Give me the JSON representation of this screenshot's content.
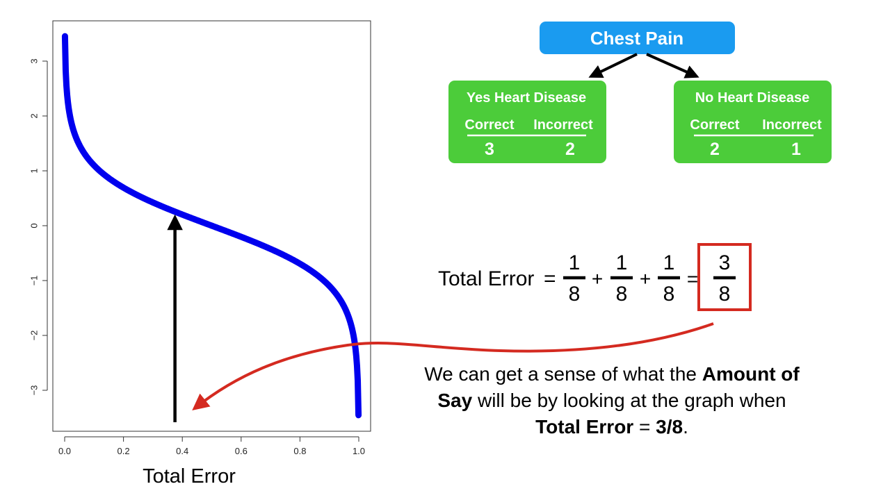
{
  "chart_data": {
    "type": "line",
    "xlabel": "Total Error",
    "ylabel": "",
    "xlim": [
      0.0,
      1.0
    ],
    "ylim": [
      -3.6,
      3.6
    ],
    "x_ticks": [
      "0.0",
      "0.2",
      "0.4",
      "0.6",
      "0.8",
      "1.0"
    ],
    "y_ticks": [
      "3",
      "2",
      "1",
      "0",
      "−1",
      "−2",
      "−3"
    ],
    "x_tick_values": [
      0,
      0.2,
      0.4,
      0.6,
      0.8,
      1.0
    ],
    "y_tick_values": [
      3,
      2,
      1,
      0,
      -1,
      -2,
      -3
    ],
    "series": [
      {
        "function": "0.5 * ln((1 - x) / x)",
        "x": [
          0.001,
          0.01,
          0.05,
          0.1,
          0.2,
          0.3,
          0.375,
          0.4,
          0.5,
          0.6,
          0.7,
          0.8,
          0.9,
          0.95,
          0.99,
          0.999
        ],
        "values": [
          3.45,
          2.3,
          1.47,
          1.1,
          0.69,
          0.42,
          0.26,
          0.2,
          0.0,
          -0.2,
          -0.42,
          -0.69,
          -1.1,
          -1.47,
          -2.3,
          -3.45
        ],
        "color": "#0000ee"
      }
    ],
    "marker_x": 0.375,
    "grid": false
  },
  "tree": {
    "root": {
      "label": "Chest Pain",
      "color": "#1a9bf0"
    },
    "leaves": [
      {
        "title": "Yes Heart Disease",
        "col1": "Correct",
        "col2": "Incorrect",
        "val1": "3",
        "val2": "2",
        "color": "#4ccc3a"
      },
      {
        "title": "No Heart Disease",
        "col1": "Correct",
        "col2": "Incorrect",
        "val1": "2",
        "val2": "1",
        "color": "#4ccc3a"
      }
    ]
  },
  "equation": {
    "label": "Total Error",
    "eq": "=",
    "plus": "+",
    "terms": [
      {
        "num": "1",
        "den": "8"
      },
      {
        "num": "1",
        "den": "8"
      },
      {
        "num": "1",
        "den": "8"
      }
    ],
    "result": {
      "num": "3",
      "den": "8"
    },
    "highlight_color": "#d42a20"
  },
  "caption": {
    "p1": "We can get a sense of what the",
    "b1": "Amount of Say",
    "p2": "will be by looking at the graph when",
    "b2": "Total Error",
    "p3": "=",
    "b3": "3/8",
    "p4": "."
  },
  "colors": {
    "arrow_red": "#d42a20",
    "arrow_black": "#000000",
    "curve": "#0000ee"
  }
}
